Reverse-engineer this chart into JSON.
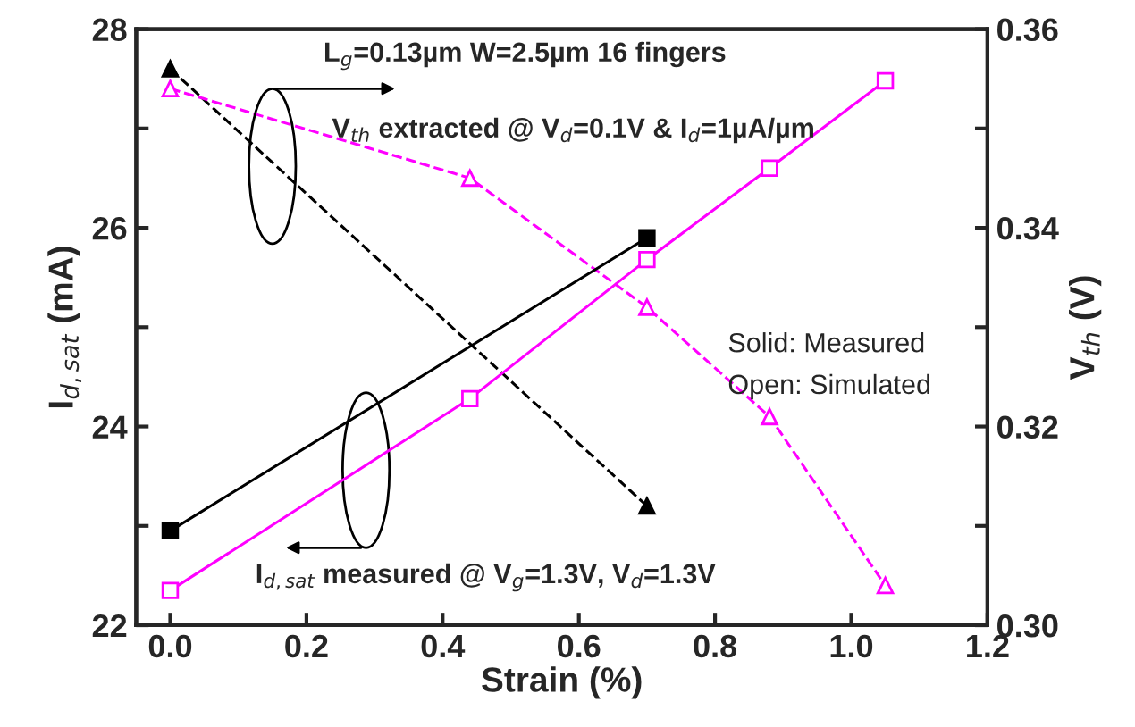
{
  "chart_data": {
    "type": "line",
    "xlabel": "Strain (%)",
    "ylabel": "I$_{d,sat}$ (mA)",
    "y2label": "V$_{th}$ (V)",
    "xlim": [
      -0.05,
      1.2
    ],
    "xticks": [
      {
        "value": 0,
        "label": "0.0"
      },
      0.2,
      0.4,
      0.6,
      0.8,
      {
        "value": 1,
        "label": "1.0"
      },
      1.2
    ],
    "ylim": [
      22,
      28
    ],
    "yticks": [
      22,
      {
        "value": 23,
        "label": null
      },
      24,
      {
        "value": 25,
        "label": null
      },
      26,
      {
        "value": 27,
        "label": null
      },
      28
    ],
    "y2lim": [
      0.3,
      0.36
    ],
    "y2ticks": [
      {
        "value": 0.3,
        "label": "0.30"
      },
      {
        "value": 0.31,
        "label": null
      },
      {
        "value": 0.32,
        "label": "0.32"
      },
      {
        "value": 0.33,
        "label": null
      },
      {
        "value": 0.34,
        "label": "0.34"
      },
      {
        "value": 0.35,
        "label": null
      },
      {
        "value": 0.36,
        "label": "0.36"
      }
    ],
    "grid": false,
    "legend": false,
    "series": [
      {
        "color": "#000000",
        "marker": "square",
        "line_style": "solid",
        "x": [
          0,
          0.7
        ],
        "values": [
          22.95,
          25.9
        ]
      },
      {
        "color": "#ff00ff",
        "marker": "square",
        "line_style": "solid",
        "x": [
          0,
          0.44,
          0.7,
          0.88,
          1.05
        ],
        "values": [
          22.35,
          24.28,
          25.68,
          26.6,
          27.48
        ]
      },
      {
        "color": "#000000",
        "marker": "triangle",
        "line_style": "dashed",
        "axis": "y2",
        "x": [
          0,
          0.7
        ],
        "values": [
          0.356,
          0.312
        ]
      },
      {
        "color": "#ff00ff",
        "marker": "triangle",
        "line_style": "dashed",
        "axis": "y2",
        "x": [
          0,
          0.44,
          0.7,
          0.88,
          1.05
        ],
        "values": [
          0.354,
          0.345,
          0.332,
          0.321,
          0.304
        ]
      }
    ],
    "annotations": [
      "L$_{g}$=0.13µm W=2.5µm 16 fingers",
      "V$_{th}$ extracted @ V$_{d}$=0.1V & I$_{d}$=1µA/µm",
      "I$_{d,sat}$ measured @ V$_{g}$=1.3V, V$_{d}$=1.3V",
      "Solid: Measured",
      "Open: Simulated"
    ]
  }
}
